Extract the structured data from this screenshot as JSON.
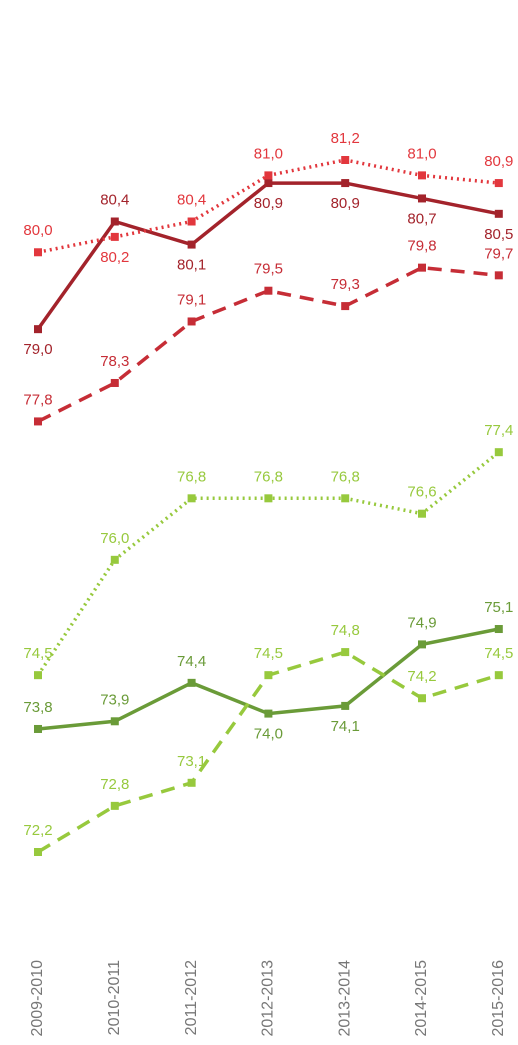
{
  "chart_data": {
    "type": "line",
    "categories": [
      "2009-2010",
      "2010-2011",
      "2011-2012",
      "2012-2013",
      "2013-2014",
      "2014-2015",
      "2015-2016"
    ],
    "series": [
      {
        "color": "#a3232b",
        "style": "solid",
        "values": [
          79.0,
          80.4,
          80.1,
          80.9,
          80.9,
          80.7,
          80.5
        ],
        "value_labels": [
          "79,0",
          "80,4",
          "80,1",
          "80,9",
          "80,9",
          "80,7",
          "80,5"
        ]
      },
      {
        "color": "#e2373d",
        "style": "dotted",
        "values": [
          80.0,
          80.2,
          80.4,
          81.0,
          81.2,
          81.0,
          80.9
        ],
        "value_labels": [
          "80,0",
          "80,2",
          "80,4",
          "81,0",
          "81,2",
          "81,0",
          "80,9"
        ]
      },
      {
        "color": "#c62d36",
        "style": "dashed",
        "values": [
          77.8,
          78.3,
          79.1,
          79.5,
          79.3,
          79.8,
          79.7
        ],
        "value_labels": [
          "77,8",
          "78,3",
          "79,1",
          "79,5",
          "79,3",
          "79,8",
          "79,7"
        ]
      },
      {
        "color": "#97c93d",
        "style": "dotted",
        "values": [
          74.5,
          76.0,
          76.8,
          76.8,
          76.8,
          76.6,
          77.4
        ],
        "value_labels": [
          "74,5",
          "76,0",
          "76,8",
          "76,8",
          "76,8",
          "76,6",
          "77,4"
        ]
      },
      {
        "color": "#6a9b38",
        "style": "solid",
        "values": [
          73.8,
          73.9,
          74.4,
          74.0,
          74.1,
          74.9,
          75.1
        ],
        "value_labels": [
          "73,8",
          "73,9",
          "74,4",
          "74,0",
          "74,1",
          "74,9",
          "75,1"
        ]
      },
      {
        "color": "#97c93d",
        "style": "dashed",
        "values": [
          72.2,
          72.8,
          73.1,
          74.5,
          74.8,
          74.2,
          74.5
        ],
        "value_labels": [
          "72,2",
          "72,8",
          "73,1",
          "74,5",
          "74,8",
          "74,2",
          "74,5"
        ]
      }
    ]
  }
}
